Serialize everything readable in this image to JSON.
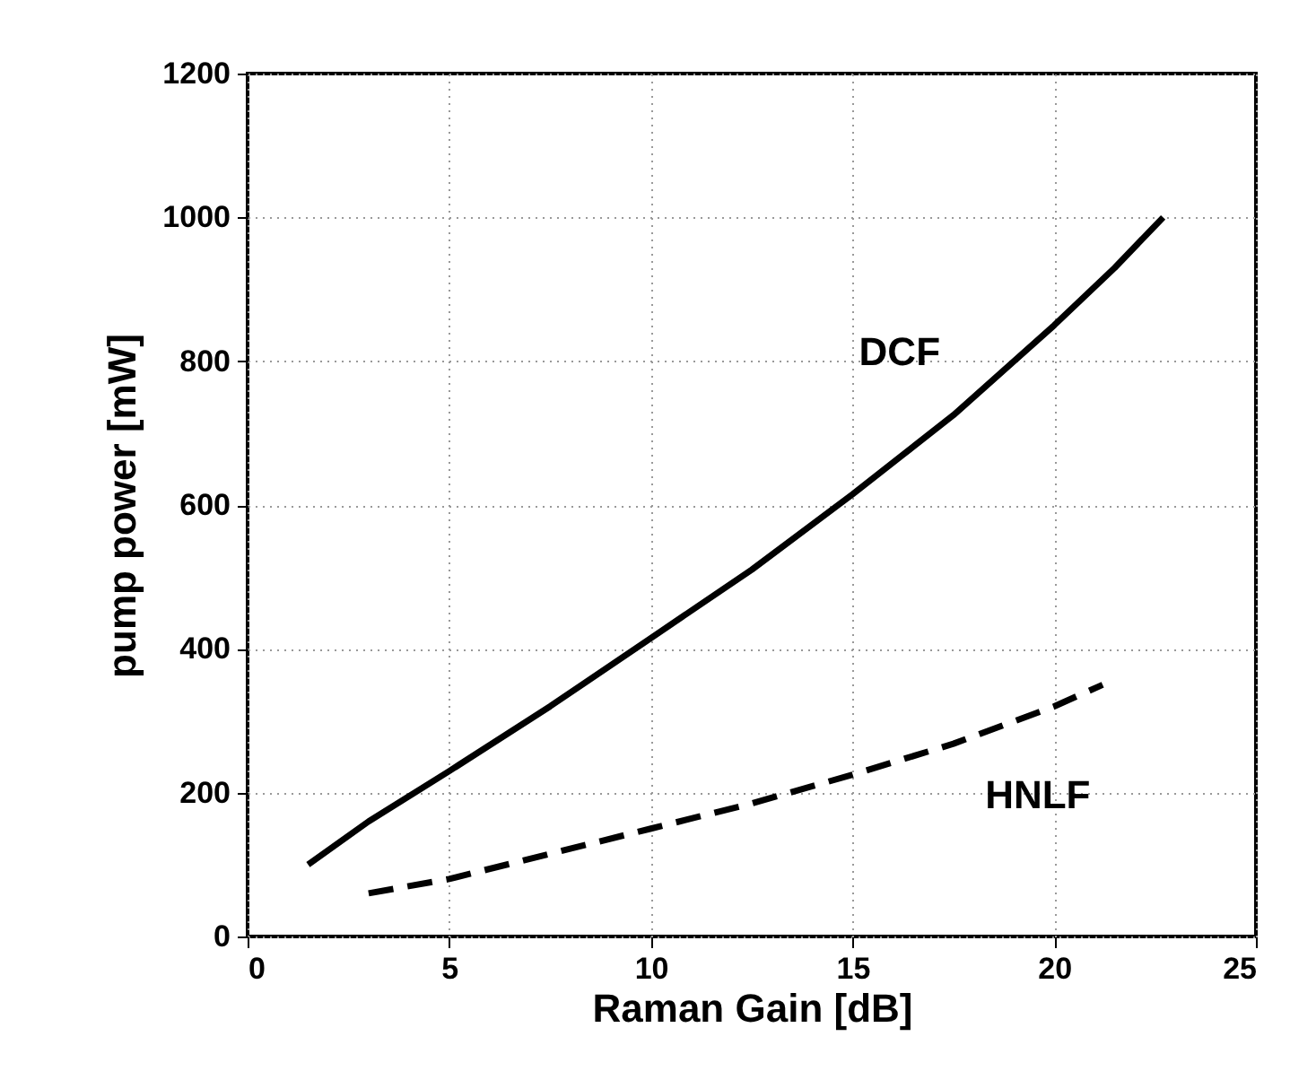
{
  "chart_data": {
    "type": "line",
    "xlabel": "Raman Gain [dB]",
    "ylabel": "pump power [mW]",
    "xlim": [
      0,
      25
    ],
    "xticks": [
      0,
      5,
      10,
      15,
      20,
      25
    ],
    "ylim": [
      0,
      1200
    ],
    "yticks": [
      0,
      200,
      400,
      600,
      800,
      1000,
      1200
    ],
    "grid": true,
    "marker": "none",
    "series": [
      {
        "name": "DCF",
        "color": "#000000",
        "line_style": "solid",
        "x": [
          1.5,
          3,
          5,
          7.5,
          10,
          12.5,
          15,
          17.5,
          20,
          21.5,
          22.7
        ],
        "values": [
          100,
          160,
          230,
          320,
          415,
          510,
          615,
          725,
          850,
          930,
          1000
        ]
      },
      {
        "name": "HNLF",
        "color": "#000000",
        "line_style": "dashed",
        "x": [
          3,
          5,
          7.5,
          10,
          12.5,
          15,
          17.5,
          20,
          21.2
        ],
        "values": [
          60,
          80,
          115,
          150,
          185,
          225,
          268,
          320,
          350
        ]
      }
    ]
  }
}
